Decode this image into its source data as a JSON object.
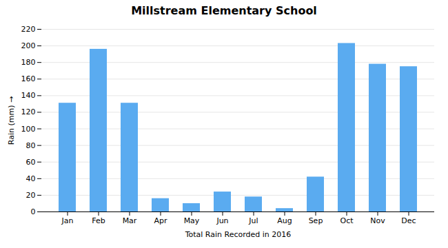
{
  "chart_data": {
    "type": "bar",
    "title": "Millstream Elementary School",
    "xlabel": "Total Rain Recorded in 2016",
    "ylabel": "Rain (mm)",
    "categories": [
      "Jan",
      "Feb",
      "Mar",
      "Apr",
      "May",
      "Jun",
      "Jul",
      "Aug",
      "Sep",
      "Oct",
      "Nov",
      "Dec"
    ],
    "values": [
      131,
      196,
      131,
      16,
      10,
      24,
      18,
      4,
      42,
      203,
      178,
      175
    ],
    "color": "#5aabf0",
    "ylim": [
      0,
      220
    ],
    "yticks": [
      0,
      20,
      40,
      60,
      80,
      100,
      120,
      140,
      160,
      180,
      200,
      220
    ],
    "grid": true
  }
}
